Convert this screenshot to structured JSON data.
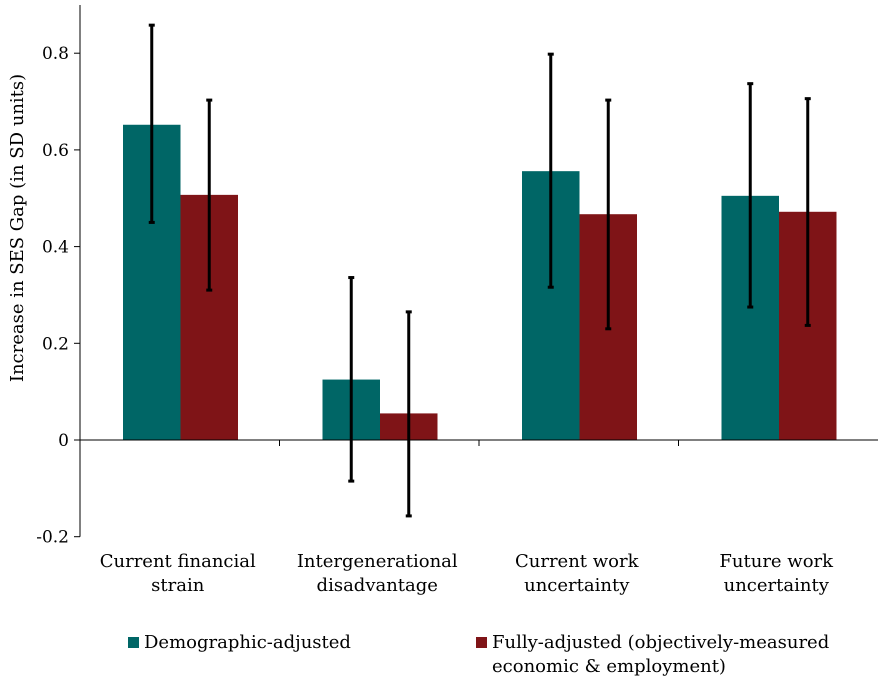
{
  "chart_data": {
    "type": "bar",
    "ylabel": "Increase in SES Gap  (in SD units)",
    "ylim": [
      -0.2,
      0.9
    ],
    "yticks": [
      -0.2,
      0,
      0.2,
      0.4,
      0.6,
      0.8
    ],
    "ytick_labels": [
      "-0.2",
      "0",
      "0.2",
      "0.4",
      "0.6",
      "0.8"
    ],
    "categories": [
      [
        "Current financial",
        "strain"
      ],
      [
        "Intergenerational",
        "disadvantage"
      ],
      [
        "Current work",
        "uncertainty"
      ],
      [
        "Future work",
        "uncertainty"
      ]
    ],
    "series": [
      {
        "name": "Demographic-adjusted",
        "color": "#006666",
        "values": [
          0.652,
          0.125,
          0.556,
          0.505
        ],
        "error_low": [
          0.45,
          -0.085,
          0.316,
          0.275
        ],
        "error_high": [
          0.858,
          0.336,
          0.798,
          0.737
        ]
      },
      {
        "name": "Fully-adjusted (objectively-measured economic & employment)",
        "legend_lines": [
          "Fully-adjusted (objectively-measured",
          "economic & employment)"
        ],
        "color": "#7f1417",
        "values": [
          0.507,
          0.055,
          0.467,
          0.472
        ],
        "error_low": [
          0.31,
          -0.157,
          0.23,
          0.237
        ],
        "error_high": [
          0.703,
          0.265,
          0.703,
          0.706
        ]
      }
    ],
    "grid": false,
    "legend_position": "bottom"
  }
}
